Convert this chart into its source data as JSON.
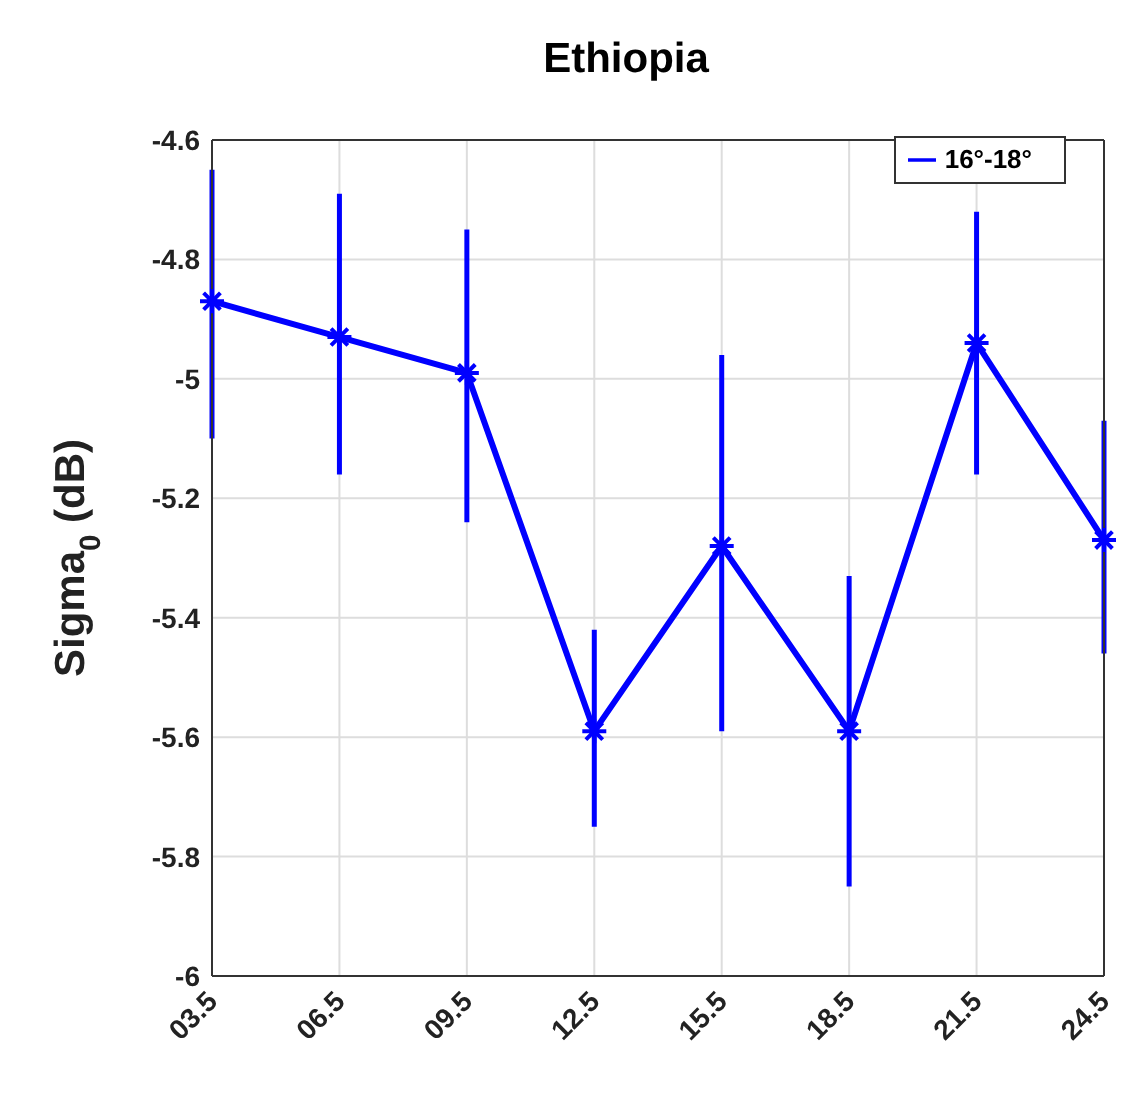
{
  "chart_data": {
    "type": "line",
    "title": "Ethiopia",
    "ylabel": "Sigma$_{0}$ (dB)",
    "categories": [
      "03.5",
      "06.5",
      "09.5",
      "12.5",
      "15.5",
      "18.5",
      "21.5",
      "24.5"
    ],
    "series": [
      {
        "name": "16°-18°",
        "color": "#0000ff",
        "values": [
          -4.87,
          -4.93,
          -4.99,
          -5.59,
          -5.28,
          -5.59,
          -4.94,
          -5.27
        ],
        "errors": [
          [
            -5.1,
            -4.65
          ],
          [
            -5.16,
            -4.69
          ],
          [
            -5.24,
            -4.75
          ],
          [
            -5.75,
            -5.42
          ],
          [
            -5.59,
            -4.96
          ],
          [
            -5.85,
            -5.33
          ],
          [
            -5.16,
            -4.72
          ],
          [
            -5.46,
            -5.07
          ]
        ]
      }
    ],
    "ylim": [
      -6,
      -4.6
    ],
    "yticks": [
      -6,
      -5.8,
      -5.6,
      -5.4,
      -5.2,
      -5,
      -4.8,
      -4.6
    ],
    "grid": true,
    "legend": "top right",
    "marker": "cross",
    "line_style": "solid"
  }
}
